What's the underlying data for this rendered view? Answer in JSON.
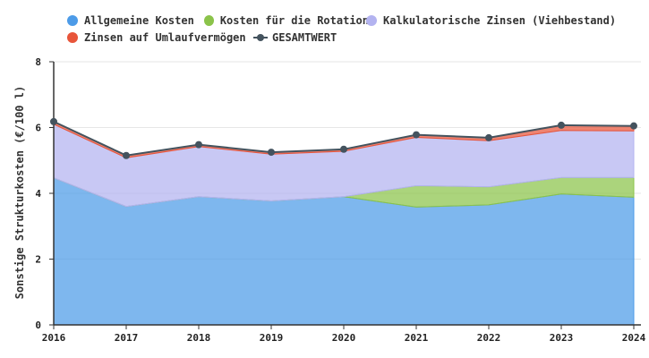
{
  "chart_data": {
    "type": "area",
    "stacked": true,
    "title": "",
    "xlabel": "",
    "ylabel": "Sonstige Strukturkosten (€/100 l)",
    "ylim": [
      0,
      8
    ],
    "yticks": [
      0,
      2,
      4,
      6,
      8
    ],
    "categories": [
      "2016",
      "2017",
      "2018",
      "2019",
      "2020",
      "2021",
      "2022",
      "2023",
      "2024"
    ],
    "series": [
      {
        "name": "Allgemeine Kosten",
        "color": "#4c9be8",
        "values": [
          4.47,
          3.6,
          3.9,
          3.77,
          3.9,
          3.58,
          3.65,
          3.98,
          3.88
        ]
      },
      {
        "name": "Kosten für die Rotation",
        "color": "#8bc34a",
        "values": [
          0,
          0,
          0,
          0,
          0,
          0.65,
          0.55,
          0.5,
          0.6
        ]
      },
      {
        "name": "Kalkulatorische Zinsen (Viehbestand)",
        "color": "#b3b3f0",
        "values": [
          1.63,
          1.48,
          1.52,
          1.42,
          1.38,
          1.47,
          1.4,
          1.43,
          1.42
        ]
      },
      {
        "name": "Zinsen auf Umlaufvermögen",
        "color": "#e8553a",
        "values": [
          0.08,
          0.07,
          0.06,
          0.06,
          0.06,
          0.08,
          0.09,
          0.16,
          0.15
        ]
      }
    ],
    "total": {
      "name": "GESAMTWERT",
      "color": "#44535e",
      "values": [
        6.18,
        5.15,
        5.48,
        5.25,
        5.34,
        5.78,
        5.69,
        6.07,
        6.05
      ]
    },
    "legend_position": "top",
    "grid": true
  }
}
